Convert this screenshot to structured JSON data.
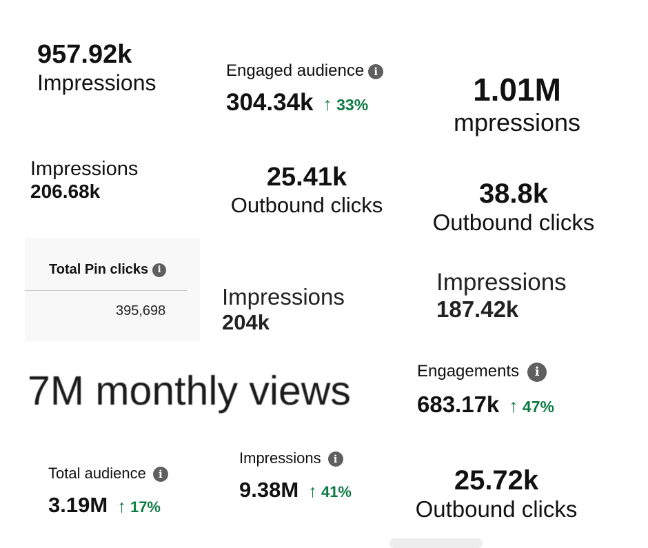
{
  "accent_green": "#0d7a43",
  "tiles": {
    "t1": {
      "value": "957.92k",
      "label": "Impressions"
    },
    "t2": {
      "label": "Engaged audience",
      "value": "304.34k",
      "change": "33%"
    },
    "t3": {
      "value": "1.01M",
      "label": "mpressions"
    },
    "t4": {
      "label": "Impressions",
      "value": "206.68k"
    },
    "t5": {
      "value": "25.41k",
      "label": "Outbound clicks"
    },
    "t6": {
      "value": "38.8k",
      "label": "Outbound clicks"
    },
    "t7": {
      "label": "Total Pin clicks",
      "value": "395,698"
    },
    "t8": {
      "label": "Impressions",
      "value": "204k"
    },
    "t9": {
      "label": "Impressions",
      "value": "187.42k"
    },
    "t10": {
      "text": "7M monthly views"
    },
    "t11": {
      "label": "Engagements",
      "value": "683.17k",
      "change": "47%"
    },
    "t12": {
      "label": "Total audience",
      "value": "3.19M",
      "change": "17%"
    },
    "t13": {
      "label": "Impressions",
      "value": "9.38M",
      "change": "41%"
    },
    "t14": {
      "value": "25.72k",
      "label": "Outbound clicks"
    }
  },
  "icons": {
    "info": "i",
    "up_arrow": "↑"
  }
}
